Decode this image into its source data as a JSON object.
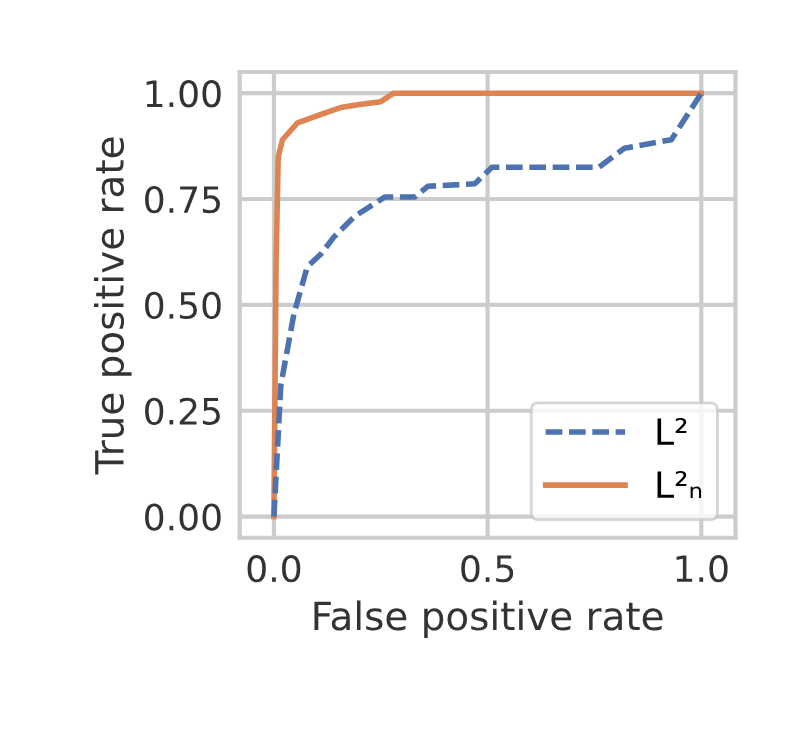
{
  "chart_data": {
    "type": "line",
    "xlabel": "False positive rate",
    "ylabel": "True positive rate",
    "xlim": [
      -0.08,
      1.08
    ],
    "ylim": [
      -0.05,
      1.05
    ],
    "xticks": [
      {
        "value": 0,
        "label": "0.0"
      },
      {
        "value": 0.5,
        "label": "0.5"
      },
      {
        "value": 1,
        "label": "1.0"
      }
    ],
    "yticks": [
      {
        "value": 0,
        "label": "0.00"
      },
      {
        "value": 0.25,
        "label": "0.25"
      },
      {
        "value": 0.5,
        "label": "0.50"
      },
      {
        "value": 0.75,
        "label": "0.75"
      },
      {
        "value": 1,
        "label": "1.00"
      }
    ],
    "grid": true,
    "legend": "bottom right",
    "series": [
      {
        "name": "L²",
        "color": "#4c72b0",
        "line_style": "dashed",
        "x": [
          0,
          0.016,
          0.047,
          0.078,
          0.11,
          0.14,
          0.19,
          0.26,
          0.33,
          0.36,
          0.47,
          0.51,
          0.76,
          0.82,
          0.93,
          1.0
        ],
        "values": [
          0,
          0.31,
          0.48,
          0.59,
          0.62,
          0.66,
          0.71,
          0.755,
          0.755,
          0.78,
          0.786,
          0.825,
          0.825,
          0.87,
          0.89,
          1.0
        ]
      },
      {
        "name": "L²ₙ",
        "color": "#dd8452",
        "line_style": "solid",
        "x": [
          0,
          0.005,
          0.01,
          0.02,
          0.055,
          0.11,
          0.156,
          0.2,
          0.25,
          0.28,
          1.0
        ],
        "values": [
          0,
          0.6,
          0.85,
          0.89,
          0.93,
          0.95,
          0.966,
          0.973,
          0.98,
          1.0,
          1.0
        ]
      }
    ]
  }
}
